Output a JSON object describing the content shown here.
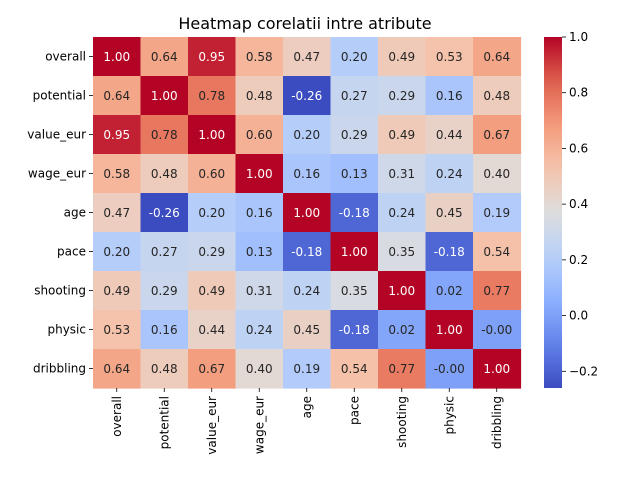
{
  "chart_data": {
    "type": "heatmap",
    "title": "Heatmap corelatii intre atribute",
    "xlabel": "",
    "ylabel": "",
    "rows": [
      "overall",
      "potential",
      "value_eur",
      "wage_eur",
      "age",
      "pace",
      "shooting",
      "physic",
      "dribbling"
    ],
    "columns": [
      "overall",
      "potential",
      "value_eur",
      "wage_eur",
      "age",
      "pace",
      "shooting",
      "physic",
      "dribbling"
    ],
    "values": [
      [
        1.0,
        0.64,
        0.95,
        0.58,
        0.47,
        0.2,
        0.49,
        0.53,
        0.64
      ],
      [
        0.64,
        1.0,
        0.78,
        0.48,
        -0.26,
        0.27,
        0.29,
        0.16,
        0.48
      ],
      [
        0.95,
        0.78,
        1.0,
        0.6,
        0.2,
        0.29,
        0.49,
        0.44,
        0.67
      ],
      [
        0.58,
        0.48,
        0.6,
        1.0,
        0.16,
        0.13,
        0.31,
        0.24,
        0.4
      ],
      [
        0.47,
        -0.26,
        0.2,
        0.16,
        1.0,
        -0.18,
        0.24,
        0.45,
        0.19
      ],
      [
        0.2,
        0.27,
        0.29,
        0.13,
        -0.18,
        1.0,
        0.35,
        -0.18,
        0.54
      ],
      [
        0.49,
        0.29,
        0.49,
        0.31,
        0.24,
        0.35,
        1.0,
        0.02,
        0.77
      ],
      [
        0.53,
        0.16,
        0.44,
        0.24,
        0.45,
        -0.18,
        0.02,
        1.0,
        -0.0
      ],
      [
        0.64,
        0.48,
        0.67,
        0.4,
        0.19,
        0.54,
        0.77,
        -0.0,
        1.0
      ]
    ],
    "cell_labels": [
      [
        "1.00",
        "0.64",
        "0.95",
        "0.58",
        "0.47",
        "0.20",
        "0.49",
        "0.53",
        "0.64"
      ],
      [
        "0.64",
        "1.00",
        "0.78",
        "0.48",
        "-0.26",
        "0.27",
        "0.29",
        "0.16",
        "0.48"
      ],
      [
        "0.95",
        "0.78",
        "1.00",
        "0.60",
        "0.20",
        "0.29",
        "0.49",
        "0.44",
        "0.67"
      ],
      [
        "0.58",
        "0.48",
        "0.60",
        "1.00",
        "0.16",
        "0.13",
        "0.31",
        "0.24",
        "0.40"
      ],
      [
        "0.47",
        "-0.26",
        "0.20",
        "0.16",
        "1.00",
        "-0.18",
        "0.24",
        "0.45",
        "0.19"
      ],
      [
        "0.20",
        "0.27",
        "0.29",
        "0.13",
        "-0.18",
        "1.00",
        "0.35",
        "-0.18",
        "0.54"
      ],
      [
        "0.49",
        "0.29",
        "0.49",
        "0.31",
        "0.24",
        "0.35",
        "1.00",
        "0.02",
        "0.77"
      ],
      [
        "0.53",
        "0.16",
        "0.44",
        "0.24",
        "0.45",
        "-0.18",
        "0.02",
        "1.00",
        "-0.00"
      ],
      [
        "0.64",
        "0.48",
        "0.67",
        "0.40",
        "0.19",
        "0.54",
        "0.77",
        "-0.00",
        "1.00"
      ]
    ],
    "colormap": "coolwarm",
    "color_range": [
      -0.26,
      1.0
    ],
    "colorbar_ticks": [
      -0.2,
      0.0,
      0.2,
      0.4,
      0.6,
      0.8,
      1.0
    ],
    "colorbar_tick_labels": [
      "−0.2",
      "0.0",
      "0.2",
      "0.4",
      "0.6",
      "0.8",
      "1.0"
    ],
    "label_color_light": "#ffffff",
    "label_color_dark": "#262626",
    "grid": false
  }
}
